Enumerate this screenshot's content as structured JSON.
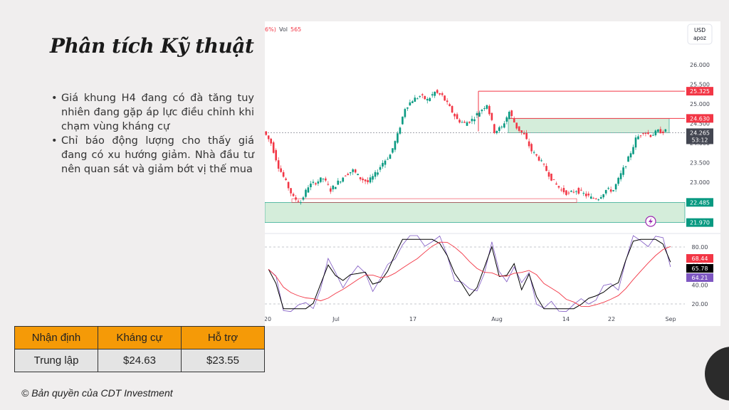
{
  "slide": {
    "title": "Phân tích Kỹ thuật",
    "bullets": [
      "Giá khung H4 đang có đà tăng tuy nhiên đang gặp áp lực điều chỉnh khi chạm vùng kháng cự",
      "Chỉ báo động lượng cho thấy giá đang có xu hướng giảm. Nhà đầu tư nên quan sát và giảm bớt vị thế mua"
    ],
    "copyright": "© Bản quyền của CDT Investment"
  },
  "table": {
    "headers": [
      "Nhận định",
      "Kháng cự",
      "Hỗ trợ"
    ],
    "row": [
      "Trung lập",
      "$24.63",
      "$23.55"
    ],
    "header_color": "#f59a07"
  },
  "chart": {
    "header_fragment": "6%)",
    "vol_label": "Vol",
    "vol_value": "565",
    "currency_unit_line1": "USD",
    "currency_unit_line2": "apoz",
    "price_ticks": [
      "26.000",
      "25.500",
      "25.000",
      "24.500",
      "24.000",
      "23.500",
      "23.000",
      "22.500",
      "22.000"
    ],
    "price_badges": [
      {
        "value": "25.325",
        "color": "#f23645"
      },
      {
        "value": "24.630",
        "color": "#f23645"
      },
      {
        "value": "24.265",
        "color": "#434651",
        "sub": "53:12"
      },
      {
        "value": "22.485",
        "color": "#089981"
      },
      {
        "value": "21.970",
        "color": "#089981"
      }
    ],
    "osc_ticks": [
      "80.00",
      "60.00",
      "40.00",
      "20.00"
    ],
    "osc_badges": [
      {
        "value": "68.44",
        "color": "#f23645"
      },
      {
        "value": "65.78",
        "color": "#000000"
      },
      {
        "value": "64.21",
        "color": "#7e57c2"
      }
    ],
    "time_labels": [
      "20",
      "Jul",
      "17",
      "Aug",
      "14",
      "22",
      "Sep"
    ],
    "colors": {
      "up": "#089981",
      "down": "#f23645",
      "zone": "#d4edda",
      "line_red": "#f23645",
      "rsi": "#000000",
      "ma": "#f23645",
      "stoch": "#7e57c2"
    }
  },
  "chart_data": {
    "type": "candlestick",
    "title": "",
    "y_axis_ticks": [
      26.0,
      25.5,
      25.0,
      24.5,
      24.0,
      23.5,
      23.0,
      22.5,
      22.0
    ],
    "x_axis_labels": [
      "20",
      "Jul",
      "17",
      "Aug",
      "14",
      "22",
      "Sep"
    ],
    "resistance_levels": [
      25.325,
      24.63
    ],
    "support_zone": [
      21.97,
      22.485
    ],
    "resistance_zone": [
      24.265,
      24.63
    ],
    "last_price": 24.265,
    "countdown": "53:12",
    "close_series_approx": [
      24.3,
      24.0,
      23.4,
      23.0,
      22.6,
      22.5,
      22.9,
      23.0,
      23.1,
      22.8,
      23.0,
      23.2,
      23.3,
      23.1,
      23.0,
      23.2,
      23.5,
      23.7,
      24.2,
      24.9,
      25.1,
      25.2,
      25.1,
      25.3,
      25.2,
      24.9,
      24.6,
      24.5,
      24.6,
      24.8,
      25.0,
      24.3,
      24.4,
      24.8,
      24.4,
      24.2,
      23.8,
      23.6,
      23.3,
      23.0,
      22.8,
      22.7,
      22.8,
      22.7,
      22.6,
      22.6,
      22.8,
      22.8,
      23.2,
      23.6,
      24.1,
      24.3,
      24.2,
      24.3,
      24.3
    ],
    "oscillator": {
      "levels": [
        80,
        60,
        40,
        20
      ],
      "series": [
        {
          "name": "68.44",
          "last": 68.44
        },
        {
          "name": "65.78",
          "last": 65.78
        },
        {
          "name": "64.21",
          "last": 64.21
        }
      ]
    }
  }
}
